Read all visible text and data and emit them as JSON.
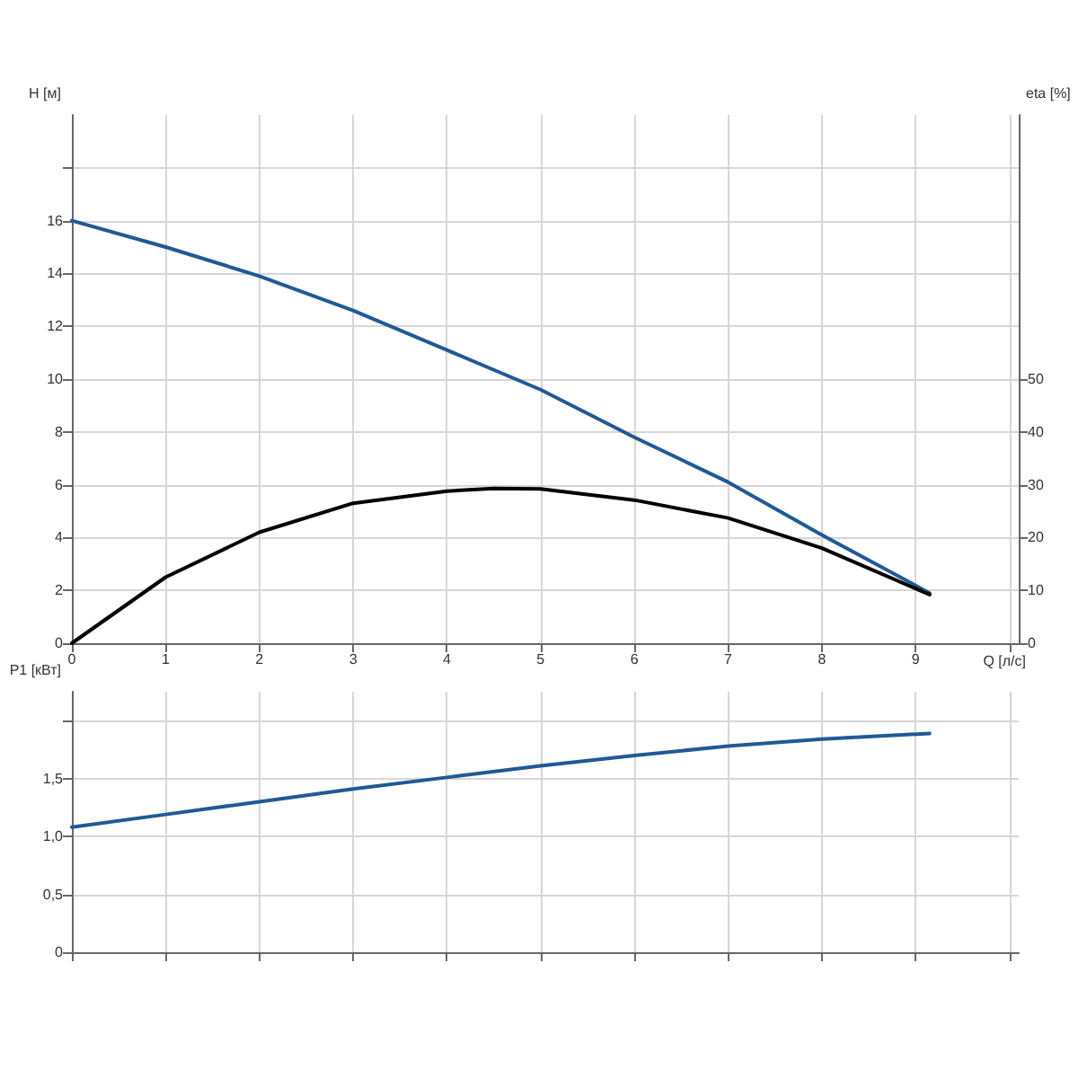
{
  "chart_data": [
    {
      "type": "line",
      "xlabel": "Q [л/с]",
      "ylabel": "H [м]",
      "y2label": "eta [%]",
      "xlim": [
        0,
        10.1
      ],
      "xticks": [
        0,
        1,
        2,
        3,
        4,
        5,
        6,
        7,
        8,
        9,
        {
          "value": 10,
          "label": null
        }
      ],
      "ylim": [
        0,
        20
      ],
      "yticks": [
        0,
        2,
        4,
        6,
        8,
        10,
        12,
        14,
        16,
        {
          "value": 18,
          "label": null
        }
      ],
      "y2lim": [
        0,
        100
      ],
      "y2ticks": [
        0,
        10,
        20,
        30,
        40,
        50
      ],
      "grid": true,
      "marker": "none",
      "series": [
        {
          "color": "#1f5a96",
          "x": [
            0,
            1,
            2,
            3,
            4,
            5,
            6,
            7,
            8,
            9.15
          ],
          "values": [
            16,
            15,
            13.9,
            12.6,
            11.1,
            9.6,
            7.8,
            6.1,
            4.1,
            1.9
          ]
        },
        {
          "color": "#000000",
          "axis": "y2",
          "x": [
            0,
            1,
            2,
            3,
            4,
            4.5,
            5,
            6,
            7,
            8,
            9.15
          ],
          "values": [
            0,
            12.5,
            21,
            26.5,
            28.8,
            29.3,
            29.2,
            27.1,
            23.7,
            18,
            9.2
          ]
        }
      ]
    },
    {
      "type": "line",
      "ylabel": "P1 [кВт]",
      "tick_labels": "y",
      "xlim": [
        0,
        10.1
      ],
      "xticks": [
        0,
        1,
        2,
        3,
        4,
        5,
        6,
        7,
        8,
        9,
        10
      ],
      "ylim": [
        0,
        2.25
      ],
      "yticks": [
        0,
        {
          "value": 0.5,
          "label": "0,5"
        },
        {
          "value": 1,
          "label": "1,0"
        },
        {
          "value": 1.5,
          "label": "1,5"
        },
        {
          "value": 2,
          "label": null
        }
      ],
      "grid": true,
      "marker": "none",
      "series": [
        {
          "color": "#1f5a96",
          "x": [
            0,
            1,
            2,
            3,
            4,
            5,
            6,
            7,
            8,
            9.15
          ],
          "values": [
            1.08,
            1.19,
            1.3,
            1.41,
            1.51,
            1.61,
            1.7,
            1.78,
            1.84,
            1.89
          ]
        }
      ]
    }
  ]
}
